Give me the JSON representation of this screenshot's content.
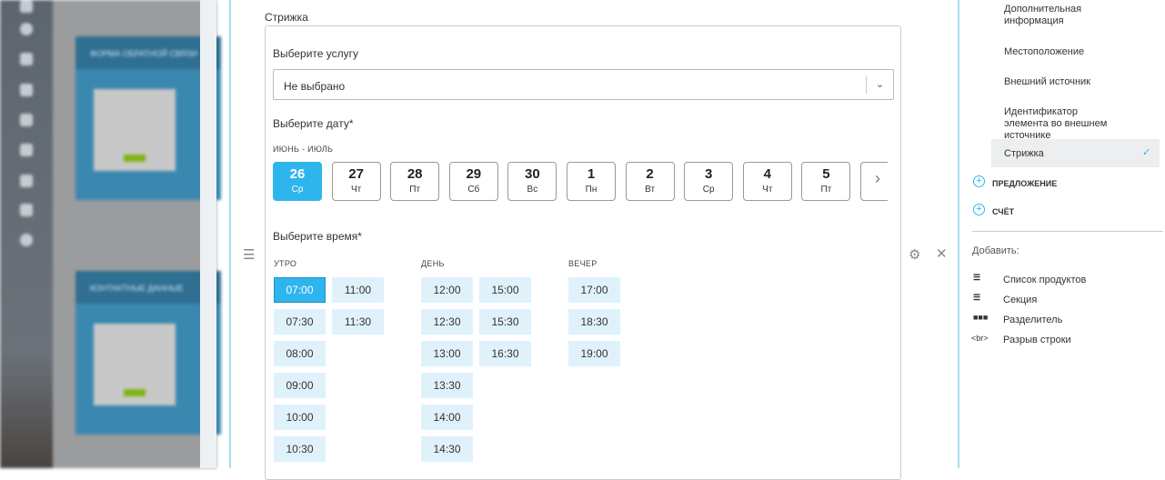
{
  "background": {
    "cards": [
      "ФОРМА ОБРАТНОЙ СВЯЗИ",
      "КОНТАКТНЫЕ ДАННЫЕ"
    ]
  },
  "field": {
    "title": "Стрижка"
  },
  "service": {
    "label": "Выберите услугу",
    "value": "Не выбрано"
  },
  "date": {
    "label": "Выберите дату*",
    "month": "ИЮНЬ - ИЮЛЬ",
    "days": [
      {
        "num": "26",
        "dow": "Ср",
        "selected": true
      },
      {
        "num": "27",
        "dow": "Чт"
      },
      {
        "num": "28",
        "dow": "Пт"
      },
      {
        "num": "29",
        "dow": "Сб"
      },
      {
        "num": "30",
        "dow": "Вс"
      },
      {
        "num": "1",
        "dow": "Пн"
      },
      {
        "num": "2",
        "dow": "Вт"
      },
      {
        "num": "3",
        "dow": "Ср"
      },
      {
        "num": "4",
        "dow": "Чт"
      },
      {
        "num": "5",
        "dow": "Пт"
      }
    ]
  },
  "time": {
    "label": "Выберите время*",
    "groups": [
      {
        "name": "УТРО",
        "columns": [
          [
            "07:00",
            "07:30",
            "08:00",
            "09:00",
            "10:00",
            "10:30"
          ],
          [
            "11:00",
            "11:30"
          ]
        ]
      },
      {
        "name": "ДЕНЬ",
        "columns": [
          [
            "12:00",
            "12:30",
            "13:00",
            "13:30",
            "14:00",
            "14:30"
          ],
          [
            "15:00",
            "15:30",
            "16:30"
          ]
        ]
      },
      {
        "name": "ВЕЧЕР",
        "columns": [
          [
            "17:00",
            "18:30",
            "19:00"
          ]
        ]
      }
    ],
    "selected": "07:00"
  },
  "right": {
    "fields": [
      "Дополнительная информация",
      "Местоположение",
      "Внешний источник",
      "Идентификатор элемента во внешнем источнике",
      "Стрижка"
    ],
    "selected_field": "Стрижка",
    "sections": [
      "ПРЕДЛОЖЕНИЕ",
      "СЧЁТ"
    ],
    "add_label": "Добавить:",
    "add_items": [
      {
        "icon": "list-icon",
        "label": "Список продуктов"
      },
      {
        "icon": "section-icon",
        "label": "Секция"
      },
      {
        "icon": "divider-icon",
        "label": "Разделитель"
      },
      {
        "icon": "<br>",
        "label": "Разрыв строки"
      }
    ]
  },
  "colors": {
    "accent": "#2fb5ee",
    "slot_bg": "#dff2fb"
  }
}
